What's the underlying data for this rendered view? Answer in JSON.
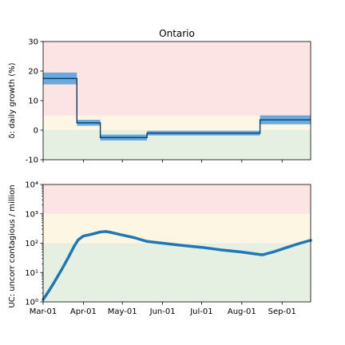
{
  "chart_data": [
    {
      "type": "line",
      "title": "Ontario",
      "ylabel": "δ: daily growth (%)",
      "ylim": [
        -10,
        30
      ],
      "yticks": [
        -10,
        0,
        10,
        20,
        30
      ],
      "x_range": [
        "2020-03-01",
        "2020-09-23"
      ],
      "bands": [
        {
          "from": 5,
          "to": 30,
          "color": "#fce4e4"
        },
        {
          "from": 0,
          "to": 5,
          "color": "#fdf6e3"
        },
        {
          "from": -10,
          "to": 0,
          "color": "#e6f0e2"
        }
      ],
      "series": [
        {
          "style": "step",
          "color": "#1f77b4",
          "band_color": "#6aa9dc",
          "points": [
            {
              "x_start": "2020-03-01",
              "x_end": "2020-03-27",
              "y": 17.5,
              "lo": 15.5,
              "hi": 19.5
            },
            {
              "x_start": "2020-03-27",
              "x_end": "2020-04-14",
              "y": 2.5,
              "lo": 1.5,
              "hi": 3.5
            },
            {
              "x_start": "2020-04-14",
              "x_end": "2020-05-20",
              "y": -2.5,
              "lo": -3.5,
              "hi": -1.5
            },
            {
              "x_start": "2020-05-20",
              "x_end": "2020-08-15",
              "y": -1.0,
              "lo": -1.8,
              "hi": -0.2
            },
            {
              "x_start": "2020-08-15",
              "x_end": "2020-09-23",
              "y": 3.5,
              "lo": 2.0,
              "hi": 5.0
            }
          ]
        }
      ]
    },
    {
      "type": "line",
      "ylabel": "UC: uncorr contagious / million",
      "yscale": "log",
      "ylim": [
        1,
        10000
      ],
      "yticks": [
        1,
        10,
        100,
        1000,
        10000
      ],
      "ytick_labels": [
        "10⁰",
        "10¹",
        "10²",
        "10³",
        "10⁴"
      ],
      "x_range": [
        "2020-03-01",
        "2020-09-23"
      ],
      "xticks": [
        "2020-03-01",
        "2020-04-01",
        "2020-05-01",
        "2020-06-01",
        "2020-07-01",
        "2020-08-01",
        "2020-09-01"
      ],
      "xtick_labels": [
        "Mar-01",
        "Apr-01",
        "May-01",
        "Jun-01",
        "Jul-01",
        "Aug-01",
        "Sep-01"
      ],
      "bands": [
        {
          "from": 1000,
          "to": 10000,
          "color": "#fce4e4"
        },
        {
          "from": 100,
          "to": 1000,
          "color": "#fdf6e3"
        },
        {
          "from": 1,
          "to": 100,
          "color": "#e6f0e2"
        }
      ],
      "series": [
        {
          "color": "#1f77b4",
          "points": [
            [
              "2020-03-01",
              1.2
            ],
            [
              "2020-03-05",
              2.2
            ],
            [
              "2020-03-10",
              5
            ],
            [
              "2020-03-15",
              12
            ],
            [
              "2020-03-20",
              30
            ],
            [
              "2020-03-25",
              80
            ],
            [
              "2020-03-28",
              130
            ],
            [
              "2020-04-01",
              175
            ],
            [
              "2020-04-07",
              200
            ],
            [
              "2020-04-14",
              240
            ],
            [
              "2020-04-18",
              250
            ],
            [
              "2020-04-22",
              235
            ],
            [
              "2020-05-01",
              190
            ],
            [
              "2020-05-10",
              155
            ],
            [
              "2020-05-20",
              115
            ],
            [
              "2020-06-01",
              100
            ],
            [
              "2020-06-15",
              85
            ],
            [
              "2020-07-01",
              72
            ],
            [
              "2020-07-15",
              60
            ],
            [
              "2020-08-01",
              50
            ],
            [
              "2020-08-10",
              44
            ],
            [
              "2020-08-17",
              40
            ],
            [
              "2020-08-25",
              50
            ],
            [
              "2020-09-05",
              72
            ],
            [
              "2020-09-15",
              100
            ],
            [
              "2020-09-23",
              125
            ]
          ]
        }
      ]
    }
  ]
}
